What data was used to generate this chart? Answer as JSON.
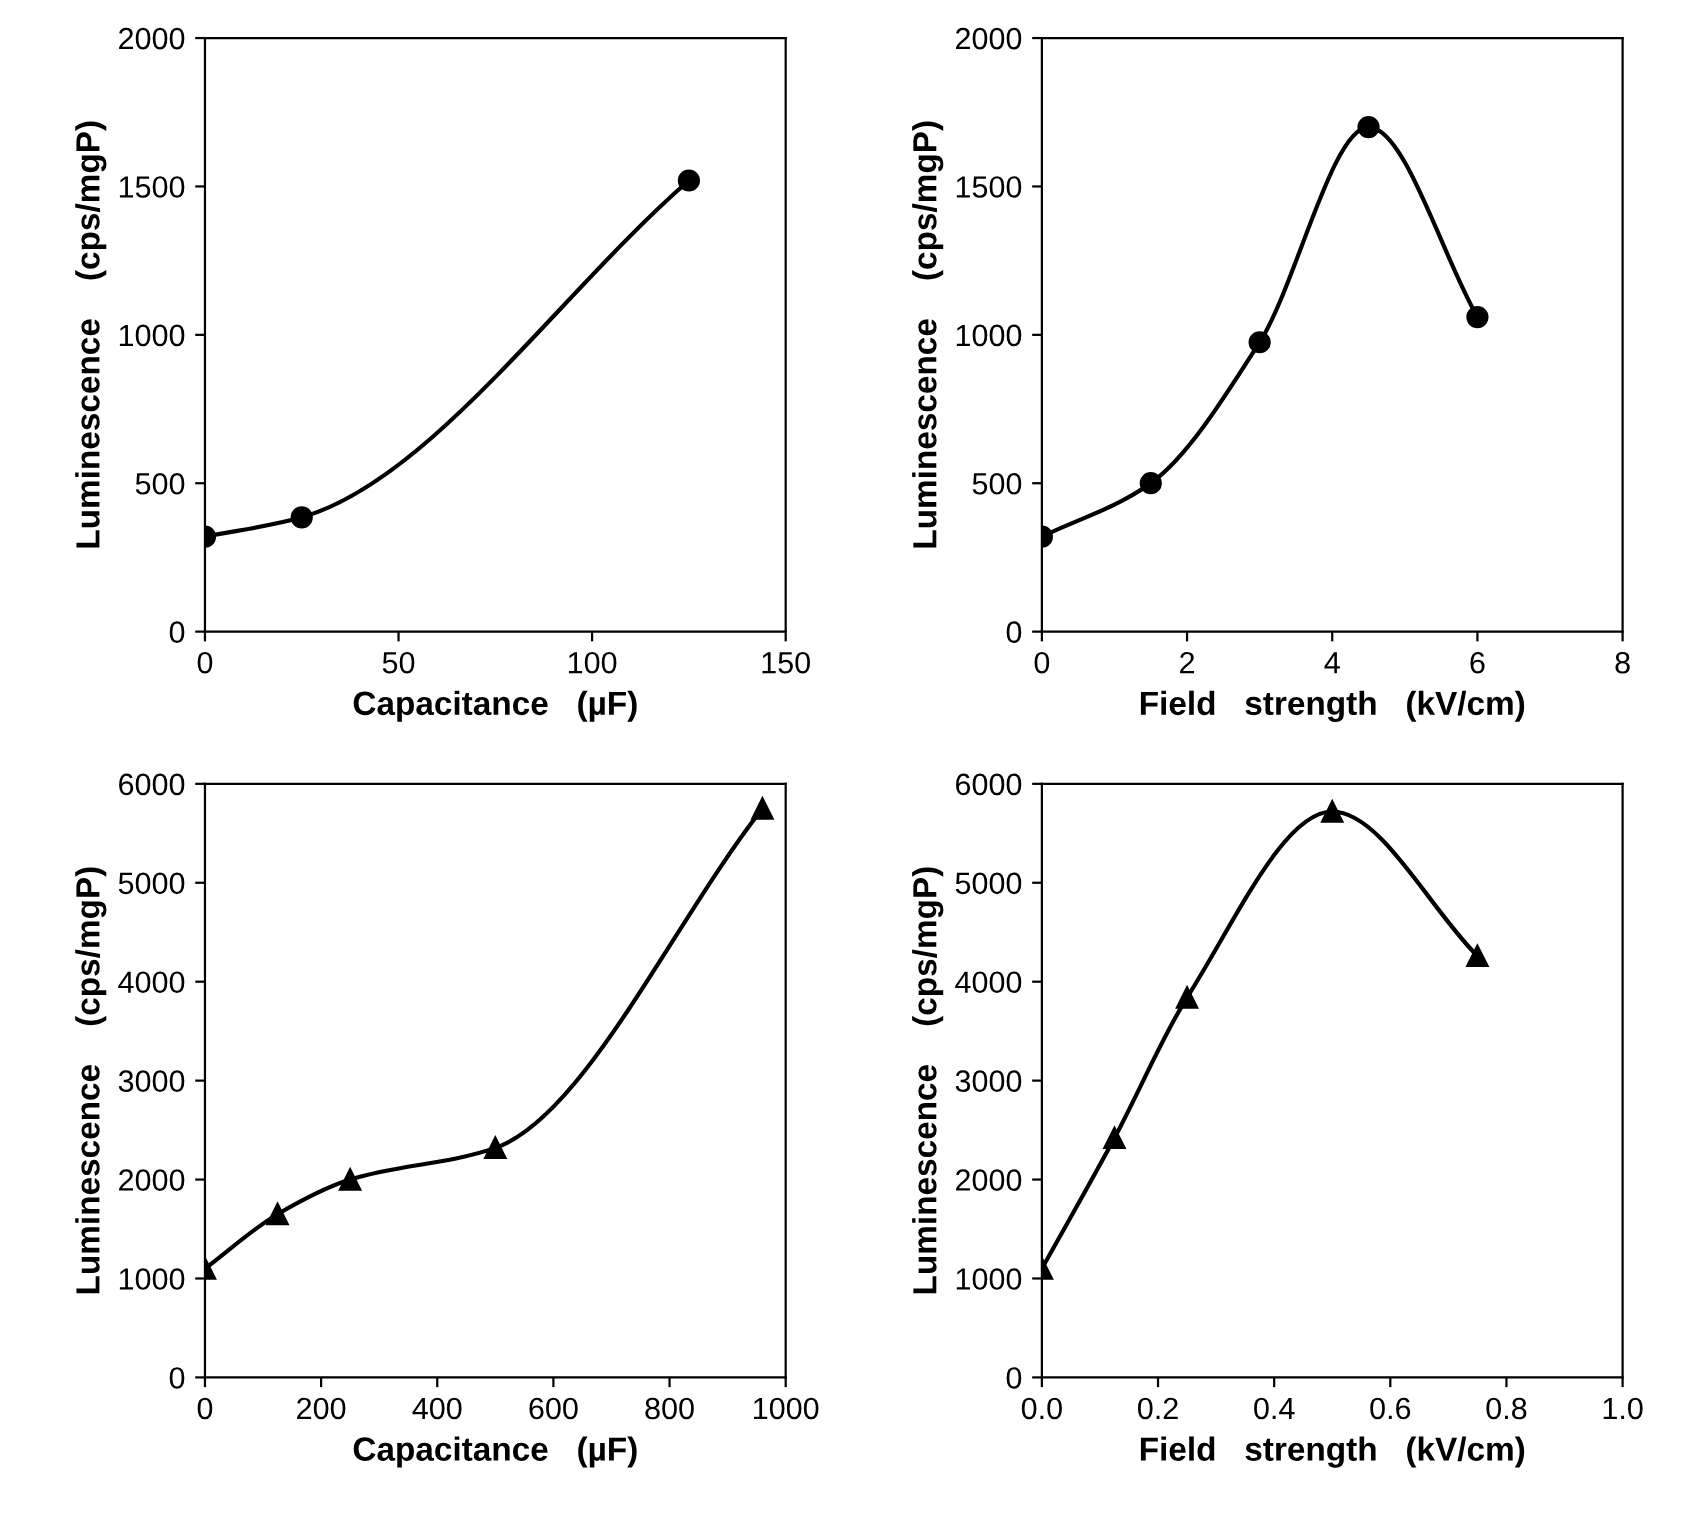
{
  "chart_data": [
    {
      "type": "line",
      "xlabel": "Capacitance   (µF)",
      "ylabel": "Luminescence    (cps/mgP)",
      "marker": "circle",
      "line_style": "solid",
      "grid": false,
      "legend": false,
      "series": [
        {
          "color": "#000000",
          "x": [
            0,
            25,
            125
          ],
          "values": [
            320,
            385,
            1520
          ]
        }
      ],
      "xlim": [
        0,
        150
      ],
      "xticks": [
        0,
        50,
        100,
        150
      ],
      "ylim": [
        0,
        2000
      ],
      "yticks": [
        0,
        500,
        1000,
        1500,
        2000
      ]
    },
    {
      "type": "line",
      "xlabel": "Field   strength   (kV/cm)",
      "ylabel": "Luminescence    (cps/mgP)",
      "marker": "circle",
      "line_style": "solid",
      "grid": false,
      "legend": false,
      "series": [
        {
          "color": "#000000",
          "x": [
            0,
            1.5,
            3,
            4.5,
            6
          ],
          "values": [
            320,
            500,
            975,
            1700,
            1060
          ]
        }
      ],
      "xlim": [
        0,
        8
      ],
      "xticks": [
        0,
        2,
        4,
        6,
        8
      ],
      "ylim": [
        0,
        2000
      ],
      "yticks": [
        0,
        500,
        1000,
        1500,
        2000
      ]
    },
    {
      "type": "line",
      "xlabel": "Capacitance   (µF)",
      "ylabel": "Luminescence    (cps/mgP)",
      "marker": "triangle",
      "line_style": "solid",
      "grid": false,
      "legend": false,
      "series": [
        {
          "color": "#000000",
          "x": [
            0,
            125,
            250,
            500,
            960
          ],
          "values": [
            1100,
            1650,
            2000,
            2320,
            5750
          ]
        }
      ],
      "xlim": [
        0,
        1000
      ],
      "xticks": [
        0,
        200,
        400,
        600,
        800,
        1000
      ],
      "ylim": [
        0,
        6000
      ],
      "yticks": [
        0,
        1000,
        2000,
        3000,
        4000,
        5000,
        6000
      ]
    },
    {
      "type": "line",
      "xlabel": "Field   strength   (kV/cm)",
      "ylabel": "Luminescence    (cps/mgP)",
      "marker": "triangle",
      "line_style": "solid",
      "grid": false,
      "legend": false,
      "series": [
        {
          "color": "#000000",
          "x": [
            0,
            0.125,
            0.25,
            0.5,
            0.75
          ],
          "values": [
            1100,
            2420,
            3840,
            5720,
            4260
          ]
        }
      ],
      "xlim": [
        0,
        1.0
      ],
      "xticks": [
        {
          "value": 0,
          "label": "0.0"
        },
        0.2,
        0.4,
        0.6,
        0.8,
        {
          "value": 1.0,
          "label": "1.0"
        }
      ],
      "ylim": [
        0,
        6000
      ],
      "yticks": [
        0,
        1000,
        2000,
        3000,
        4000,
        5000,
        6000
      ]
    }
  ]
}
